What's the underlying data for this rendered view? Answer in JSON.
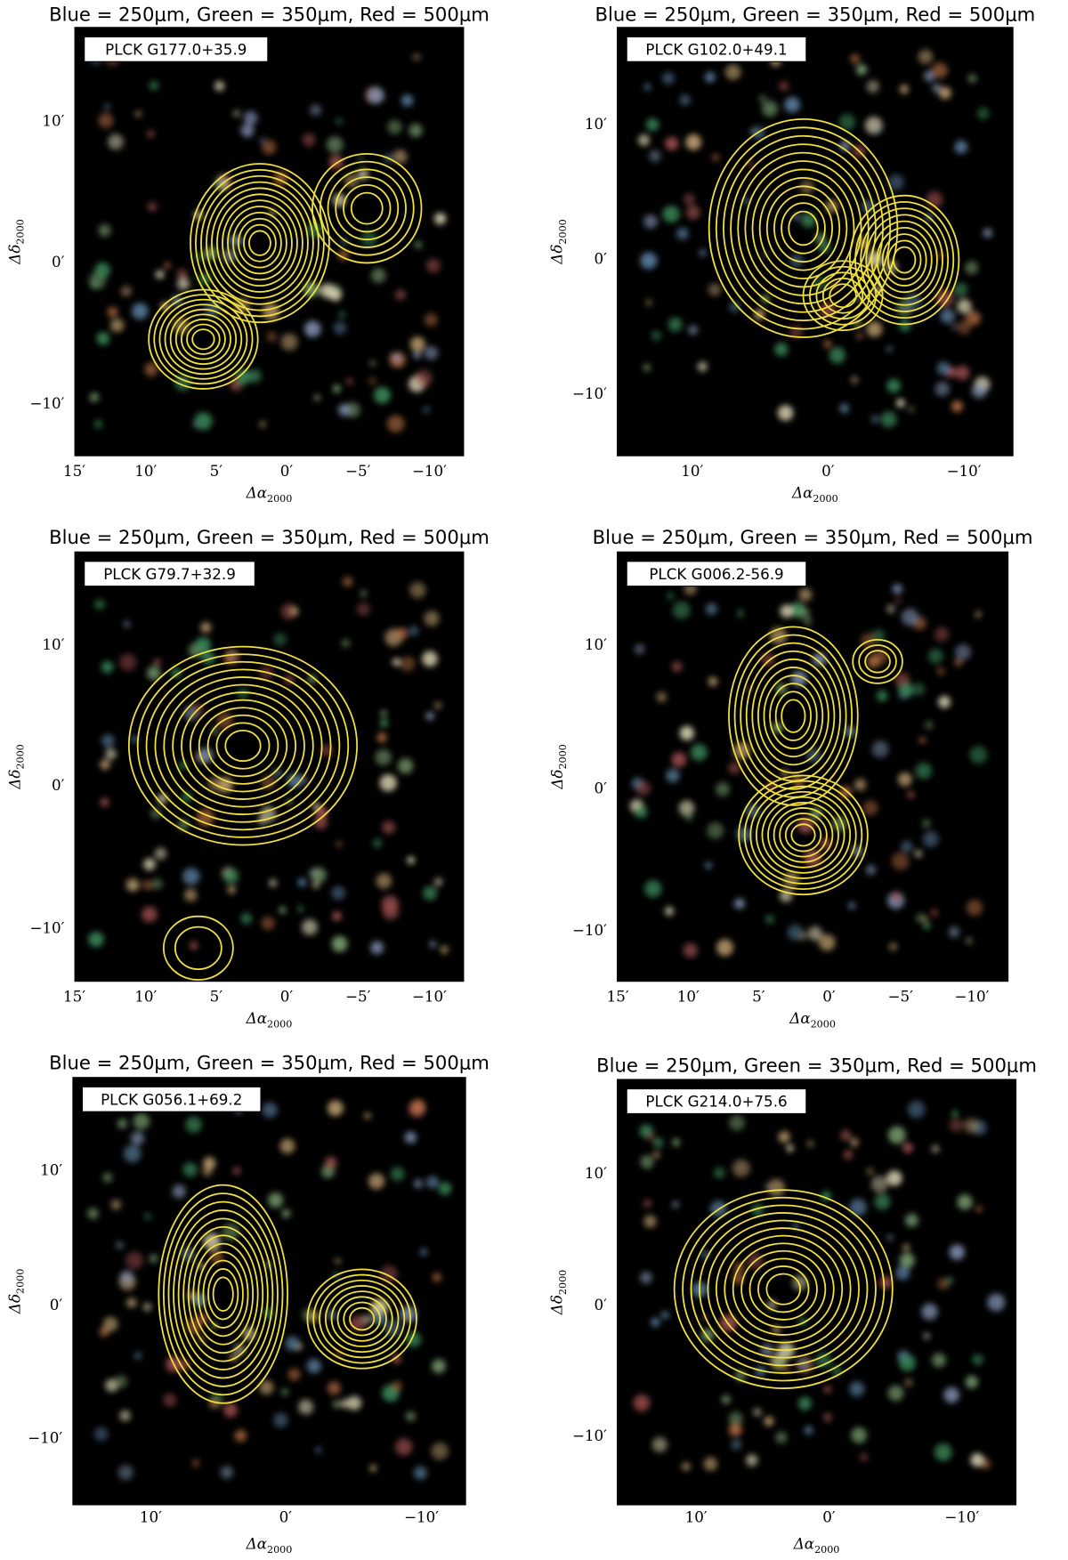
{
  "panels": [
    {
      "title": "Blue = 250μm, Green = 350μm, Red = 500μm",
      "label": "PLCK G177.0+35.9",
      "xticks": [
        "15′",
        "10′",
        "5′",
        "0′",
        "−5′",
        "−10′"
      ],
      "yticks": [
        "10′",
        "0′",
        "−10′"
      ],
      "xlabel": {
        "main": "Δα",
        "sub": "2000"
      },
      "ylabel": {
        "main": "Δδ",
        "sub": "2000"
      }
    },
    {
      "title": "Blue = 250μm, Green = 350μm, Red = 500μm",
      "label": "PLCK G102.0+49.1",
      "xticks": [
        "10′",
        "0′",
        "−10′"
      ],
      "yticks": [
        "10′",
        "0′",
        "−10′"
      ],
      "xlabel": {
        "main": "Δα",
        "sub": "2000"
      },
      "ylabel": {
        "main": "Δδ",
        "sub": "2000"
      }
    },
    {
      "title": "Blue = 250μm, Green = 350μm, Red = 500μm",
      "label": "PLCK G79.7+32.9",
      "xticks": [
        "15′",
        "10′",
        "5′",
        "0′",
        "−5′",
        "−10′"
      ],
      "yticks": [
        "10′",
        "0′",
        "−10′"
      ],
      "xlabel": {
        "main": "Δα",
        "sub": "2000"
      },
      "ylabel": {
        "main": "Δδ",
        "sub": "2000"
      }
    },
    {
      "title": "Blue = 250μm, Green = 350μm, Red = 500μm",
      "label": "PLCK G006.2-56.9",
      "xticks": [
        "15′",
        "10′",
        "5′",
        "0′",
        "−5′",
        "−10′"
      ],
      "yticks": [
        "10′",
        "0′",
        "−10′"
      ],
      "xlabel": {
        "main": "Δα",
        "sub": "2000"
      },
      "ylabel": {
        "main": "Δδ",
        "sub": "2000"
      }
    },
    {
      "title": "Blue = 250μm, Green = 350μm, Red = 500μm",
      "label": "PLCK G056.1+69.2",
      "xticks": [
        "10′",
        "0′",
        "−10′"
      ],
      "yticks": [
        "10′",
        "0′",
        "−10′"
      ],
      "xlabel": {
        "main": "Δα",
        "sub": "2000"
      },
      "ylabel": {
        "main": "Δδ",
        "sub": "2000"
      }
    },
    {
      "title": "Blue = 250μm, Green = 350μm, Red = 500μm",
      "label": "PLCK G214.0+75.6",
      "xticks": [
        "10′",
        "0′",
        "−10′"
      ],
      "yticks": [
        "10′",
        "0′",
        "−10′"
      ],
      "xlabel": {
        "main": "Δα",
        "sub": "2000"
      },
      "ylabel": {
        "main": "Δδ",
        "sub": "2000"
      }
    }
  ]
}
